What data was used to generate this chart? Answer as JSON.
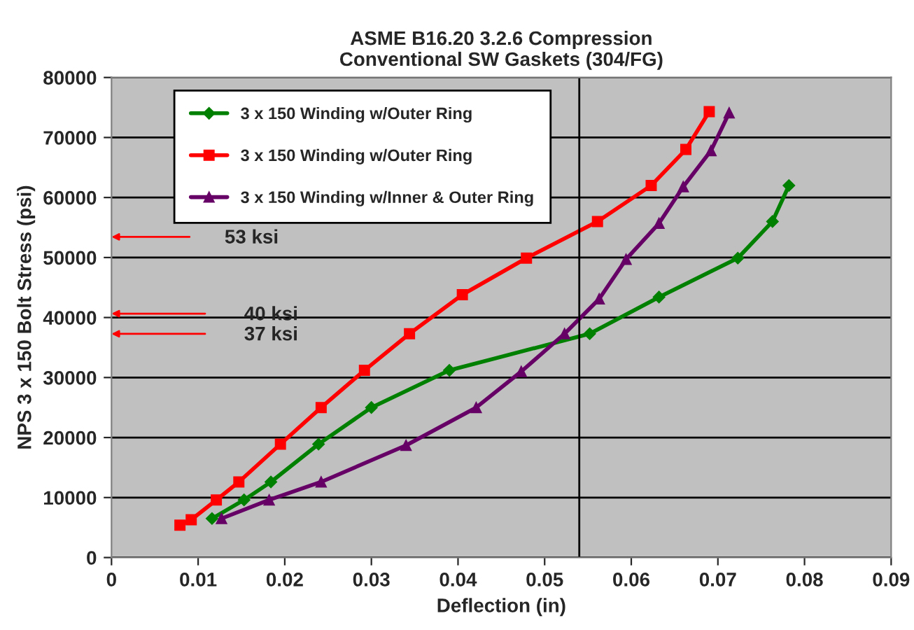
{
  "chart_data": {
    "type": "line",
    "title": "ASME B16.20 3.2.6 Compression\nConventional SW Gaskets (304/FG)",
    "xlabel": "Deflection (in)",
    "ylabel": "NPS 3 x 150 Bolt Stress (psi)",
    "xlim": [
      0,
      0.09
    ],
    "xticks": [
      0,
      0.01,
      0.02,
      0.03,
      0.04,
      0.05,
      0.06,
      0.07,
      0.08,
      0.09
    ],
    "ylim": [
      0,
      80000
    ],
    "yticks": [
      0,
      10000,
      20000,
      30000,
      40000,
      50000,
      60000,
      70000,
      80000
    ],
    "grid": "y",
    "legend": "top left",
    "line_style": "solid",
    "series": [
      {
        "name": "3 x 150 Winding w/Outer Ring",
        "color": "#008000",
        "marker": "diamond",
        "x": [
          0.0116,
          0.0153,
          0.0184,
          0.0239,
          0.03,
          0.039,
          0.0552,
          0.0632,
          0.0723,
          0.0763,
          0.0782
        ],
        "values": [
          6500,
          9600,
          12600,
          18900,
          25000,
          31200,
          37300,
          43400,
          49900,
          56000,
          62000
        ]
      },
      {
        "name": "3 x 150 Winding w/Outer Ring",
        "color": "#ff0000",
        "marker": "square",
        "x": [
          0.0079,
          0.0092,
          0.0121,
          0.0147,
          0.0195,
          0.0242,
          0.0292,
          0.0344,
          0.0405,
          0.0479,
          0.0561,
          0.0623,
          0.0663,
          0.069
        ],
        "values": [
          5400,
          6300,
          9600,
          12600,
          18900,
          25000,
          31200,
          37300,
          43800,
          49900,
          56000,
          62000,
          68000,
          74300
        ]
      },
      {
        "name": "3 x 150 Winding w/Inner & Outer Ring",
        "color": "#660066",
        "marker": "triangle",
        "x": [
          0.0127,
          0.0182,
          0.0242,
          0.034,
          0.0421,
          0.0473,
          0.0523,
          0.0563,
          0.0594,
          0.0632,
          0.066,
          0.0692,
          0.0713
        ],
        "values": [
          6500,
          9600,
          12600,
          18700,
          25000,
          31000,
          37300,
          43100,
          49700,
          55700,
          61800,
          67800,
          74100
        ]
      }
    ],
    "ref_lines": [
      {
        "axis": "x",
        "value": 0.054,
        "color": "#000000",
        "line_style": "solid"
      }
    ],
    "annotations": [
      "53 ksi",
      "40 ksi",
      "37 ksi"
    ]
  }
}
